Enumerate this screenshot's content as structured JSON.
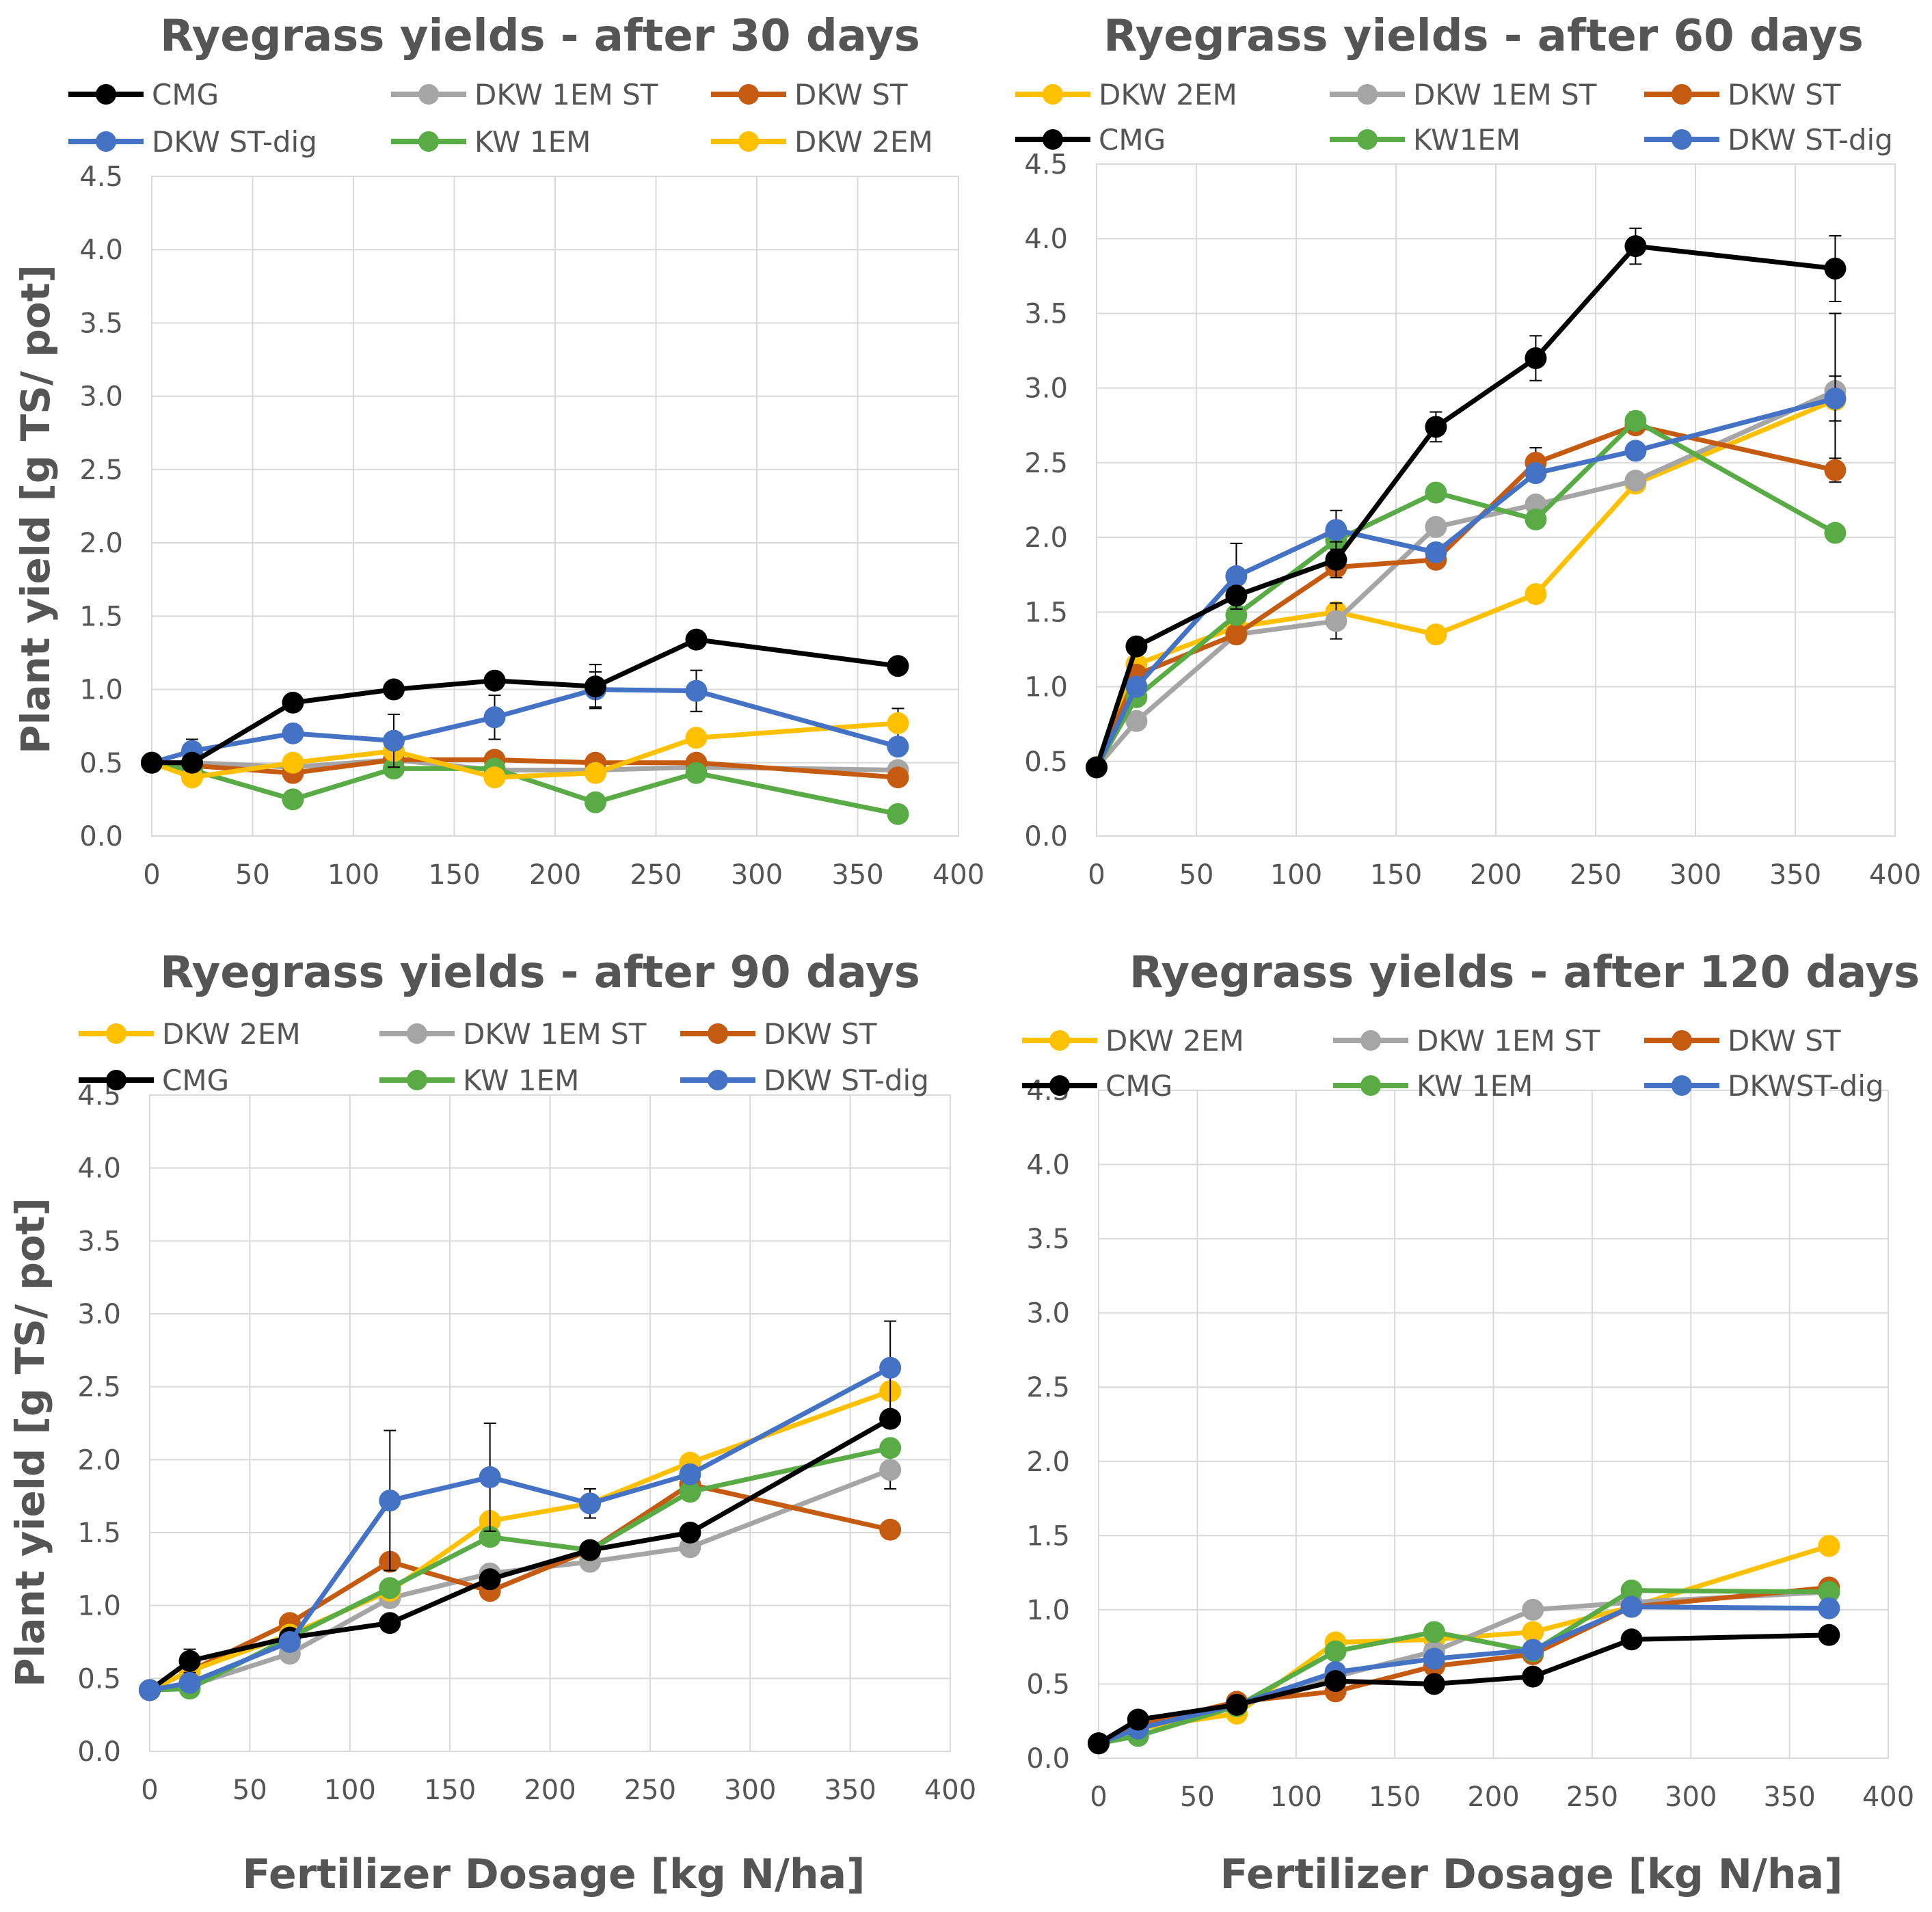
{
  "figure": {
    "ylabel": "Plant yield [g TS/ pot]",
    "xlabel": "Fertilizer Dosage [kg N/ha]"
  },
  "colors": {
    "CMG": "#000000",
    "DKW 1EM ST": "#A5A5A5",
    "DKW ST": "#C55A11",
    "DKW ST-dig": "#4472C4",
    "KW 1EM": "#59AB46",
    "DKW 2EM": "#FFC000"
  },
  "chart_data": [
    {
      "type": "line",
      "title": "Ryegrass yields - after 30 days",
      "xlim": [
        0,
        400
      ],
      "ylim": [
        0,
        4.5
      ],
      "xticks": [
        0,
        50,
        100,
        150,
        200,
        250,
        300,
        350,
        400
      ],
      "xtick_labels": [
        "0",
        "50",
        "100",
        "150",
        "200",
        "250",
        "300",
        "350",
        "400"
      ],
      "yticks": [
        0,
        0.5,
        1,
        1.5,
        2,
        2.5,
        3,
        3.5,
        4,
        4.5
      ],
      "ytick_labels": [
        "0.0",
        "0.5",
        "1.0",
        "1.5",
        "2.0",
        "2.5",
        "3.0",
        "3.5",
        "4.0",
        "4.5"
      ],
      "x": [
        0,
        20,
        70,
        120,
        170,
        220,
        270,
        370
      ],
      "series": [
        {
          "name": "DKW 1EM ST",
          "label": "DKW 1EM ST",
          "colorKey": "DKW 1EM ST",
          "values": [
            0.5,
            0.5,
            0.47,
            0.52,
            0.45,
            0.45,
            0.47,
            0.45
          ],
          "err": [
            0,
            0,
            0,
            0,
            0,
            0,
            0,
            0
          ]
        },
        {
          "name": "DKW ST",
          "label": "DKW ST",
          "colorKey": "DKW ST",
          "values": [
            0.5,
            0.48,
            0.43,
            0.52,
            0.52,
            0.5,
            0.5,
            0.4
          ],
          "err": [
            0,
            0,
            0,
            0,
            0,
            0,
            0,
            0
          ]
        },
        {
          "name": "KW 1EM",
          "label": "KW 1EM",
          "colorKey": "KW 1EM",
          "values": [
            0.5,
            0.45,
            0.25,
            0.46,
            0.46,
            0.23,
            0.43,
            0.15
          ],
          "err": [
            0,
            0,
            0,
            0,
            0,
            0,
            0,
            0
          ]
        },
        {
          "name": "DKW 2EM",
          "label": "DKW 2EM",
          "colorKey": "DKW 2EM",
          "values": [
            0.5,
            0.4,
            0.5,
            0.58,
            0.4,
            0.43,
            0.67,
            0.77
          ],
          "err": [
            0,
            0,
            0,
            0,
            0,
            0,
            0,
            0.1
          ]
        },
        {
          "name": "DKW ST-dig",
          "label": "DKW ST-dig",
          "colorKey": "DKW ST-dig",
          "values": [
            0.5,
            0.58,
            0.7,
            0.65,
            0.81,
            1.0,
            0.99,
            0.61
          ],
          "err": [
            0,
            0.08,
            0,
            0.18,
            0.15,
            0.12,
            0.14,
            0
          ]
        },
        {
          "name": "CMG",
          "label": "CMG",
          "colorKey": "CMG",
          "values": [
            0.5,
            0.5,
            0.91,
            1.0,
            1.06,
            1.02,
            1.34,
            1.16
          ],
          "err": [
            0,
            0,
            0,
            0,
            0,
            0.15,
            0,
            0
          ]
        }
      ],
      "legend_order": [
        "CMG",
        "DKW 1EM ST",
        "DKW ST",
        "DKW ST-dig",
        "KW 1EM",
        "DKW 2EM"
      ]
    },
    {
      "type": "line",
      "title": "Ryegrass yields - after 60 days",
      "xlim": [
        0,
        400
      ],
      "ylim": [
        0,
        4.5
      ],
      "xticks": [
        0,
        50,
        100,
        150,
        200,
        250,
        300,
        350,
        400
      ],
      "xtick_labels": [
        "0",
        "50",
        "100",
        "150",
        "200",
        "250",
        "300",
        "350",
        "400"
      ],
      "yticks": [
        0,
        0.5,
        1,
        1.5,
        2,
        2.5,
        3,
        3.5,
        4,
        4.5
      ],
      "ytick_labels": [
        "0.0",
        "0.5",
        "1.0",
        "1.5",
        "2.0",
        "2.5",
        "3.0",
        "3.5",
        "4.0",
        "4.5"
      ],
      "x": [
        0,
        20,
        70,
        120,
        170,
        220,
        270,
        370
      ],
      "series": [
        {
          "name": "DKW 2EM",
          "label": "DKW 2EM",
          "colorKey": "DKW 2EM",
          "values": [
            0.46,
            1.15,
            1.4,
            1.5,
            1.35,
            1.62,
            2.36,
            2.92
          ],
          "err": [
            0,
            0,
            0,
            0,
            0,
            0,
            0,
            0
          ]
        },
        {
          "name": "DKW 1EM ST",
          "label": "DKW 1EM ST",
          "colorKey": "DKW 1EM ST",
          "values": [
            0.46,
            0.77,
            1.35,
            1.44,
            2.07,
            2.22,
            2.38,
            2.98
          ],
          "err": [
            0,
            0,
            0,
            0.12,
            0,
            0,
            0,
            0.52
          ]
        },
        {
          "name": "DKW ST",
          "label": "DKW ST",
          "colorKey": "DKW ST",
          "values": [
            0.46,
            1.08,
            1.35,
            1.8,
            1.85,
            2.5,
            2.75,
            2.45
          ],
          "err": [
            0,
            0,
            0,
            0,
            0,
            0.1,
            0,
            0.08
          ]
        },
        {
          "name": "KW1EM",
          "label": "KW1EM",
          "colorKey": "KW 1EM",
          "values": [
            0.46,
            0.93,
            1.48,
            1.98,
            2.3,
            2.12,
            2.78,
            2.03
          ],
          "err": [
            0,
            0,
            0,
            0,
            0,
            0,
            0.06,
            0
          ]
        },
        {
          "name": "DKW ST-dig",
          "label": "DKW ST-dig",
          "colorKey": "DKW ST-dig",
          "values": [
            0.46,
            1.0,
            1.74,
            2.05,
            1.9,
            2.43,
            2.58,
            2.93
          ],
          "err": [
            0,
            0,
            0.22,
            0.13,
            0,
            0,
            0,
            0.15
          ]
        },
        {
          "name": "CMG",
          "label": "CMG",
          "colorKey": "CMG",
          "values": [
            0.46,
            1.27,
            1.61,
            1.85,
            2.74,
            3.2,
            3.95,
            3.8
          ],
          "err": [
            0,
            0,
            0,
            0.12,
            0.1,
            0.15,
            0.12,
            0.22
          ]
        }
      ],
      "legend_order": [
        "DKW 2EM",
        "DKW 1EM ST",
        "DKW ST",
        "CMG",
        "KW1EM",
        "DKW ST-dig"
      ]
    },
    {
      "type": "line",
      "title": "Ryegrass yields - after 90 days",
      "xlim": [
        0,
        400
      ],
      "ylim": [
        0,
        4.5
      ],
      "xticks": [
        0,
        50,
        100,
        150,
        200,
        250,
        300,
        350,
        400
      ],
      "xtick_labels": [
        "0",
        "50",
        "100",
        "150",
        "200",
        "250",
        "300",
        "350",
        "400"
      ],
      "yticks": [
        0,
        0.5,
        1,
        1.5,
        2,
        2.5,
        3,
        3.5,
        4,
        4.5
      ],
      "ytick_labels": [
        "0.0",
        "0.5",
        "1.0",
        "1.5",
        "2.0",
        "2.5",
        "3.0",
        "3.5",
        "4.0",
        "4.5"
      ],
      "x": [
        0,
        20,
        70,
        120,
        170,
        220,
        270,
        370
      ],
      "series": [
        {
          "name": "DKW 1EM ST",
          "label": "DKW 1EM ST",
          "colorKey": "DKW 1EM ST",
          "values": [
            0.42,
            0.45,
            0.67,
            1.05,
            1.22,
            1.3,
            1.4,
            1.93
          ],
          "err": [
            0,
            0,
            0,
            0,
            0,
            0,
            0,
            0.13
          ]
        },
        {
          "name": "DKW ST",
          "label": "DKW ST",
          "colorKey": "DKW ST",
          "values": [
            0.42,
            0.55,
            0.88,
            1.3,
            1.1,
            1.38,
            1.83,
            1.52
          ],
          "err": [
            0,
            0,
            0,
            0,
            0,
            0,
            0,
            0
          ]
        },
        {
          "name": "DKW 2EM",
          "label": "DKW 2EM",
          "colorKey": "DKW 2EM",
          "values": [
            0.42,
            0.55,
            0.8,
            1.1,
            1.58,
            1.7,
            1.98,
            2.47
          ],
          "err": [
            0,
            0,
            0,
            0,
            0,
            0,
            0,
            0
          ]
        },
        {
          "name": "KW 1EM",
          "label": "KW 1EM",
          "colorKey": "KW 1EM",
          "values": [
            0.42,
            0.43,
            0.78,
            1.12,
            1.47,
            1.38,
            1.78,
            2.08
          ],
          "err": [
            0,
            0,
            0,
            0,
            0,
            0,
            0,
            0
          ]
        },
        {
          "name": "CMG",
          "label": "CMG",
          "colorKey": "CMG",
          "values": [
            0.42,
            0.62,
            0.78,
            0.88,
            1.18,
            1.38,
            1.5,
            2.28
          ],
          "err": [
            0,
            0.08,
            0,
            0,
            0,
            0,
            0,
            0
          ]
        },
        {
          "name": "DKW ST-dig",
          "label": "DKW ST-dig",
          "colorKey": "DKW ST-dig",
          "values": [
            0.42,
            0.47,
            0.75,
            1.72,
            1.88,
            1.7,
            1.9,
            2.63
          ],
          "err": [
            0,
            0,
            0,
            0.48,
            0.37,
            0.1,
            0,
            0.32
          ]
        }
      ],
      "legend_order": [
        "DKW 2EM",
        "DKW 1EM ST",
        "DKW ST",
        "CMG",
        "KW 1EM",
        "DKW ST-dig"
      ]
    },
    {
      "type": "line",
      "title": "Ryegrass yields - after 120 days",
      "xlim": [
        0,
        400
      ],
      "ylim": [
        0,
        4.5
      ],
      "xticks": [
        0,
        50,
        100,
        150,
        200,
        250,
        300,
        350,
        400
      ],
      "xtick_labels": [
        "0",
        "50",
        "100",
        "150",
        "200",
        "250",
        "300",
        "350",
        "400"
      ],
      "yticks": [
        0,
        0.5,
        1,
        1.5,
        2,
        2.5,
        3,
        3.5,
        4,
        4.5
      ],
      "ytick_labels": [
        "0.0",
        "0.5",
        "1.0",
        "1.5",
        "2.0",
        "2.5",
        "3.0",
        "3.5",
        "4.0",
        "4.5"
      ],
      "x": [
        0,
        20,
        70,
        120,
        170,
        220,
        270,
        370
      ],
      "series": [
        {
          "name": "DKW 2EM",
          "label": "DKW 2EM",
          "colorKey": "DKW 2EM",
          "values": [
            0.1,
            0.2,
            0.3,
            0.78,
            0.8,
            0.85,
            1.02,
            1.43
          ],
          "err": [
            0,
            0,
            0,
            0,
            0,
            0,
            0,
            0
          ]
        },
        {
          "name": "DKW 1EM ST",
          "label": "DKW 1EM ST",
          "colorKey": "DKW 1EM ST",
          "values": [
            0.1,
            0.22,
            0.35,
            0.55,
            0.72,
            1.0,
            1.05,
            1.12
          ],
          "err": [
            0,
            0,
            0,
            0,
            0,
            0,
            0,
            0
          ]
        },
        {
          "name": "DKW ST",
          "label": "DKW ST",
          "colorKey": "DKW ST",
          "values": [
            0.1,
            0.22,
            0.38,
            0.45,
            0.62,
            0.7,
            1.02,
            1.15
          ],
          "err": [
            0,
            0,
            0,
            0,
            0,
            0,
            0,
            0
          ]
        },
        {
          "name": "KW 1EM",
          "label": "KW 1EM",
          "colorKey": "KW 1EM",
          "values": [
            0.1,
            0.15,
            0.35,
            0.72,
            0.85,
            0.72,
            1.13,
            1.12
          ],
          "err": [
            0,
            0,
            0,
            0,
            0,
            0,
            0,
            0
          ]
        },
        {
          "name": "DKWST-dig",
          "label": "DKWST-dig",
          "colorKey": "DKW ST-dig",
          "values": [
            0.1,
            0.2,
            0.36,
            0.58,
            0.67,
            0.73,
            1.02,
            1.01
          ],
          "err": [
            0,
            0,
            0,
            0,
            0,
            0,
            0,
            0
          ]
        },
        {
          "name": "CMG",
          "label": "CMG",
          "colorKey": "CMG",
          "values": [
            0.1,
            0.26,
            0.36,
            0.52,
            0.5,
            0.55,
            0.8,
            0.83
          ],
          "err": [
            0,
            0,
            0,
            0,
            0,
            0,
            0,
            0
          ]
        }
      ],
      "legend_order": [
        "DKW 2EM",
        "DKW 1EM ST",
        "DKW ST",
        "CMG",
        "KW 1EM",
        "DKWST-dig"
      ]
    }
  ]
}
